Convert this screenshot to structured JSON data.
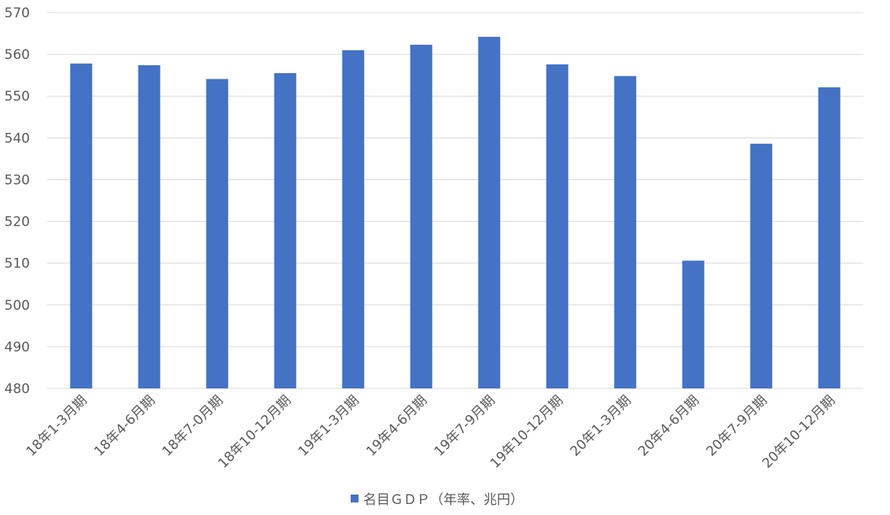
{
  "chart_data": {
    "type": "bar",
    "categories": [
      "18年1-3月期",
      "18年4-6月期",
      "18年7-0月期",
      "18年10-12月期",
      "19年1-3月期",
      "19年4-6月期",
      "19年7-9月期",
      "19年10-12月期",
      "20年1-3月期",
      "20年4-6月期",
      "20年7-9月期",
      "20年10-12月期"
    ],
    "series": [
      {
        "name": "名目ＧＤＰ（年率、兆円）",
        "values": [
          557.8,
          557.4,
          554.1,
          555.5,
          561.0,
          562.3,
          564.2,
          557.6,
          554.8,
          510.6,
          538.6,
          552.1
        ],
        "color": "#4472c4"
      }
    ],
    "ylim": [
      480,
      570
    ],
    "yticks": [
      480,
      490,
      500,
      510,
      520,
      530,
      540,
      550,
      560,
      570
    ],
    "grid": true,
    "legend_position": "bottom",
    "title": "",
    "xlabel": "",
    "ylabel": ""
  }
}
